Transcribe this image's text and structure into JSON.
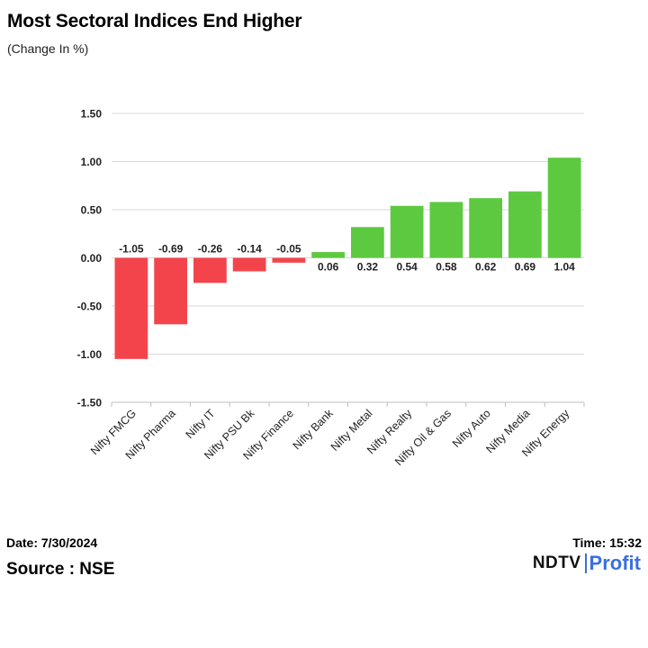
{
  "header": {
    "title": "Most Sectoral Indices End Higher",
    "subtitle": "(Change In %)"
  },
  "footer": {
    "date": "Date: 7/30/2024",
    "time": "Time: 15:32",
    "source": "Source : NSE",
    "logo_main": "NDTV",
    "logo_sub": "Profit"
  },
  "colors": {
    "negative": "#f4444b",
    "positive": "#5dc940",
    "grid": "#d9d9d9"
  },
  "chart_data": {
    "type": "bar",
    "title": "Most Sectoral Indices End Higher",
    "ylabel": "(Change In %)",
    "xlabel": "",
    "ylim": [
      -1.5,
      1.5
    ],
    "yticks": [
      "1.50",
      "1.00",
      "0.50",
      "0.00",
      "-0.50",
      "-1.00",
      "-1.50"
    ],
    "yticks_values": [
      1.5,
      1.0,
      0.5,
      0.0,
      -0.5,
      -1.0,
      -1.5
    ],
    "categories": [
      "Nifty FMCG",
      "Nifty Pharma",
      "Nifty IT",
      "Nifty PSU Bk",
      "Nifty Finance",
      "Nifty Bank",
      "Nifty Metal",
      "Nifty Realty",
      "Nifty Oil & Gas",
      "Nifty Auto",
      "Nifty Media",
      "Nifty Energy"
    ],
    "values": [
      -1.05,
      -0.69,
      -0.26,
      -0.14,
      -0.05,
      0.06,
      0.32,
      0.54,
      0.58,
      0.62,
      0.69,
      1.04
    ],
    "labels": [
      "-1.05",
      "-0.69",
      "-0.26",
      "-0.14",
      "-0.05",
      "0.06",
      "0.32",
      "0.54",
      "0.58",
      "0.62",
      "0.69",
      "1.04"
    ],
    "grid": true
  }
}
